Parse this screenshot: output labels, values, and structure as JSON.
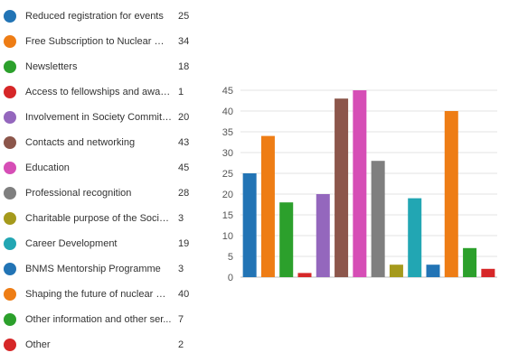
{
  "chart_data": {
    "type": "bar",
    "title": "",
    "xlabel": "",
    "ylabel": "",
    "ylim": [
      0,
      45
    ],
    "yticks": [
      0,
      5,
      10,
      15,
      20,
      25,
      30,
      35,
      40,
      45
    ],
    "grid": true,
    "legend_position": "left",
    "series": [
      {
        "name": "Reduced registration for events",
        "value": 25,
        "color": "#2274b5"
      },
      {
        "name": "Free Subscription to Nuclear Me...",
        "value": 34,
        "color": "#ee7d15"
      },
      {
        "name": "Newsletters",
        "value": 18,
        "color": "#2ca02c"
      },
      {
        "name": "Access to fellowships and awards",
        "value": 1,
        "color": "#d62728"
      },
      {
        "name": "Involvement in Society Committ...",
        "value": 20,
        "color": "#9467bd"
      },
      {
        "name": "Contacts and networking",
        "value": 43,
        "color": "#8c564b"
      },
      {
        "name": "Education",
        "value": 45,
        "color": "#d64eb6"
      },
      {
        "name": "Professional recognition",
        "value": 28,
        "color": "#7f7f7f"
      },
      {
        "name": "Charitable purpose of the Society",
        "value": 3,
        "color": "#a59a1c"
      },
      {
        "name": "Career Development",
        "value": 19,
        "color": "#22a6b3"
      },
      {
        "name": "BNMS Mentorship Programme",
        "value": 3,
        "color": "#2274b5"
      },
      {
        "name": "Shaping the future of nuclear m...",
        "value": 40,
        "color": "#ee7d15"
      },
      {
        "name": "Other information and other ser...",
        "value": 7,
        "color": "#2ca02c"
      },
      {
        "name": "Other",
        "value": 2,
        "color": "#d62728"
      }
    ]
  }
}
